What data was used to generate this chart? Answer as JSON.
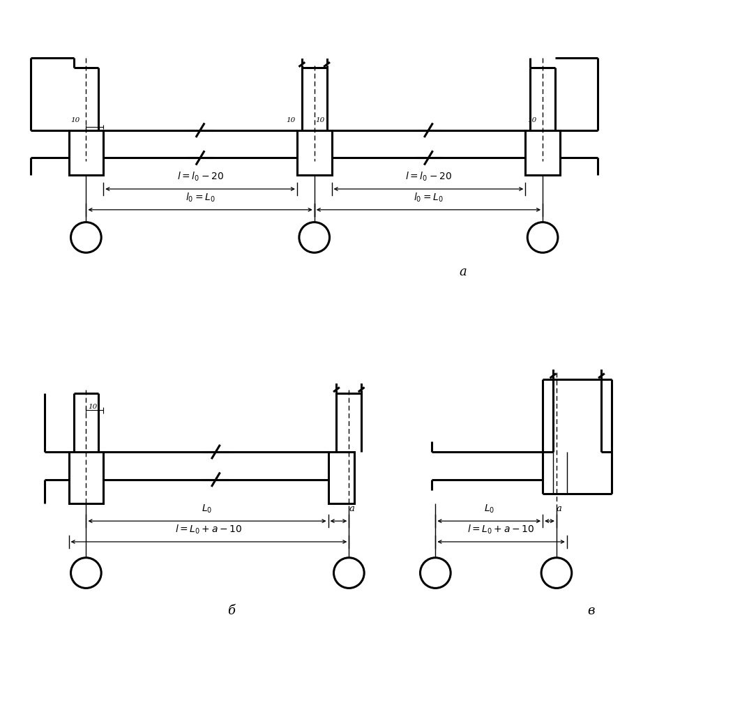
{
  "bg_color": "#ffffff",
  "lw_thick": 2.2,
  "lw_med": 1.4,
  "lw_thin": 1.0,
  "lw_dim": 0.9,
  "label_a": "a",
  "label_b": "б",
  "label_v": "в",
  "figsize": [
    10.84,
    10.44
  ],
  "dpi": 100
}
